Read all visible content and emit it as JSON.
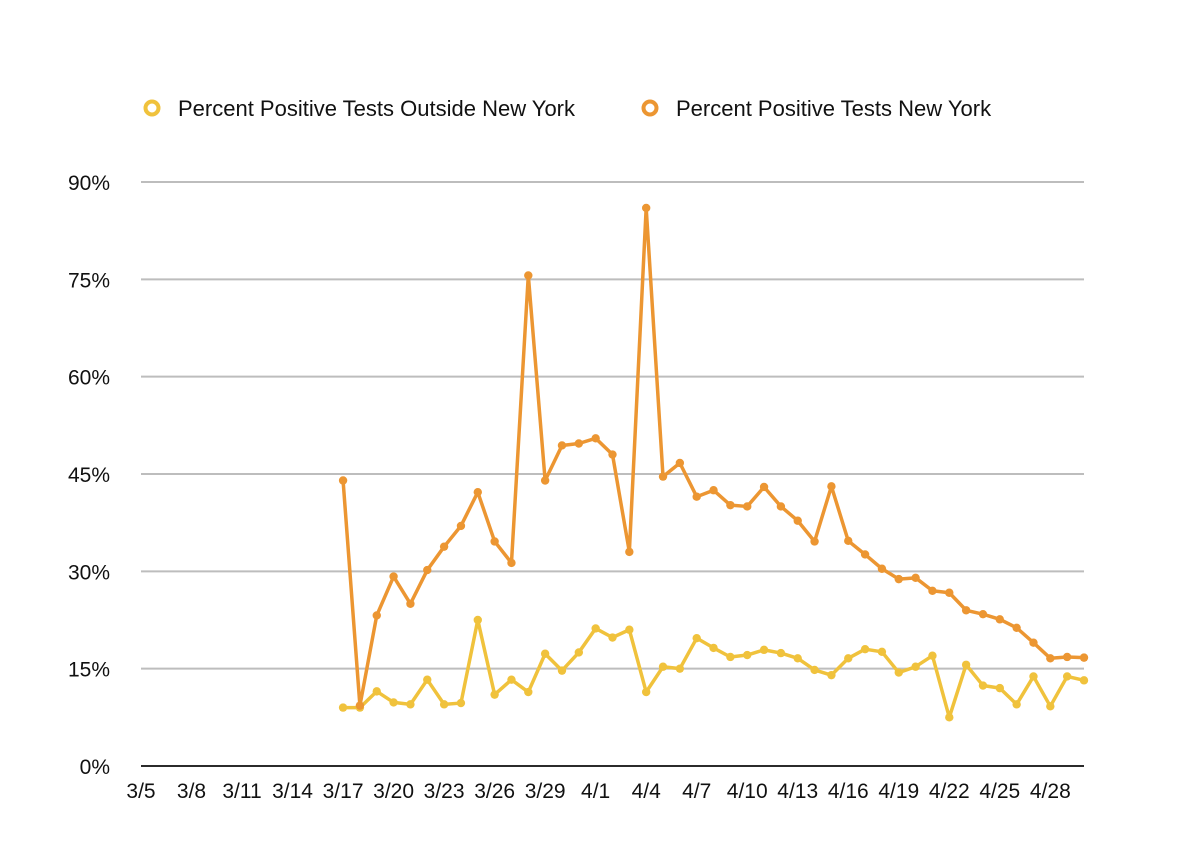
{
  "chart_data": {
    "type": "line",
    "title": "",
    "xlabel": "",
    "ylabel": "",
    "ylim": [
      0,
      90
    ],
    "y_ticks": [
      "0%",
      "15%",
      "30%",
      "45%",
      "60%",
      "75%",
      "90%"
    ],
    "y_tick_values": [
      0,
      15,
      30,
      45,
      60,
      75,
      90
    ],
    "grid": true,
    "legend_position": "top",
    "x_tick_labels": [
      "3/5",
      "3/8",
      "3/11",
      "3/14",
      "3/17",
      "3/20",
      "3/23",
      "3/26",
      "3/29",
      "4/1",
      "4/4",
      "4/7",
      "4/10",
      "4/13",
      "4/16",
      "4/19",
      "4/22",
      "4/25",
      "4/28"
    ],
    "x": [
      "3/5",
      "3/6",
      "3/7",
      "3/8",
      "3/9",
      "3/10",
      "3/11",
      "3/12",
      "3/13",
      "3/14",
      "3/15",
      "3/16",
      "3/17",
      "3/18",
      "3/19",
      "3/20",
      "3/21",
      "3/22",
      "3/23",
      "3/24",
      "3/25",
      "3/26",
      "3/27",
      "3/28",
      "3/29",
      "3/30",
      "3/31",
      "4/1",
      "4/2",
      "4/3",
      "4/4",
      "4/5",
      "4/6",
      "4/7",
      "4/8",
      "4/9",
      "4/10",
      "4/11",
      "4/12",
      "4/13",
      "4/14",
      "4/15",
      "4/16",
      "4/17",
      "4/18",
      "4/19",
      "4/20",
      "4/21",
      "4/22",
      "4/23",
      "4/24",
      "4/25",
      "4/26",
      "4/27",
      "4/28",
      "4/29",
      "4/30"
    ],
    "series": [
      {
        "name": "Percent Positive Tests Outside New York",
        "color": "#f0c23c",
        "values": [
          null,
          null,
          null,
          null,
          null,
          null,
          null,
          null,
          null,
          null,
          null,
          null,
          9.0,
          9.0,
          11.5,
          9.8,
          9.5,
          13.3,
          9.5,
          9.7,
          22.5,
          11.0,
          13.3,
          11.4,
          17.3,
          14.7,
          17.5,
          21.2,
          19.8,
          21.0,
          11.4,
          15.3,
          15.0,
          19.7,
          18.2,
          16.8,
          17.1,
          17.9,
          17.4,
          16.6,
          14.8,
          14.0,
          16.6,
          18.0,
          17.6,
          14.4,
          15.3,
          17.0,
          7.5,
          15.6,
          12.4,
          12.0,
          9.5,
          13.8,
          9.2,
          13.8,
          13.2
        ]
      },
      {
        "name": "Percent Positive Tests New York",
        "color": "#ec9632",
        "values": [
          null,
          null,
          null,
          null,
          null,
          null,
          null,
          null,
          null,
          null,
          null,
          null,
          44.0,
          9.3,
          23.2,
          29.2,
          25.0,
          30.2,
          33.8,
          37.0,
          42.2,
          34.6,
          31.3,
          75.6,
          44.0,
          49.4,
          49.7,
          50.5,
          48.0,
          33.0,
          86.0,
          44.6,
          46.7,
          41.5,
          42.5,
          40.2,
          40.0,
          43.0,
          40.0,
          37.8,
          34.6,
          43.1,
          34.7,
          32.6,
          30.4,
          28.8,
          29.0,
          27.0,
          26.7,
          24.0,
          23.4,
          22.6,
          21.3,
          19.0,
          16.6,
          16.8,
          16.7
        ]
      }
    ]
  }
}
